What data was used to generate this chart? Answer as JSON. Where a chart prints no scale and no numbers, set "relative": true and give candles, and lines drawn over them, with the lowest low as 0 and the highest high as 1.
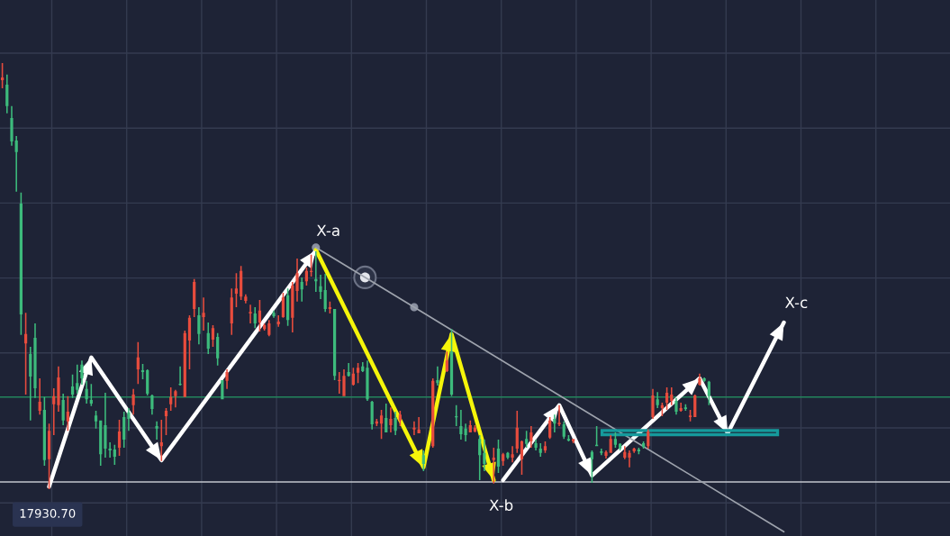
{
  "chart_data": {
    "type": "candlestick",
    "relative": true,
    "categories": [
      null,
      null,
      null,
      null,
      null,
      null,
      null,
      null,
      null,
      null,
      null,
      null,
      null,
      null,
      null,
      null,
      null,
      null,
      null,
      null,
      null,
      null,
      null,
      null,
      null,
      null,
      null,
      null,
      null,
      null,
      null,
      null,
      null,
      null,
      null,
      null,
      null,
      null,
      null,
      null,
      null,
      null,
      null,
      null,
      null,
      null,
      null,
      null,
      null,
      null,
      null,
      null,
      null,
      null,
      null,
      null,
      null,
      null,
      null,
      null,
      null,
      null,
      null,
      null,
      null,
      null,
      null,
      null,
      null,
      null,
      null,
      null,
      null,
      null,
      null,
      null,
      null,
      null,
      null,
      null,
      null,
      null,
      null,
      null,
      null,
      null,
      null,
      null,
      null,
      null,
      null,
      null,
      null,
      null,
      null,
      null,
      null,
      null,
      null,
      null,
      null,
      null,
      null,
      null,
      null,
      null,
      null,
      null,
      null,
      null,
      null,
      null,
      null,
      null,
      null,
      null,
      null,
      null,
      null,
      null,
      null,
      null,
      null,
      null,
      null,
      null,
      null,
      null,
      null,
      null,
      null,
      null,
      null,
      null,
      null,
      null,
      null,
      null,
      null,
      null,
      null,
      null,
      null,
      null,
      null,
      null,
      null,
      null,
      null,
      null,
      null,
      null,
      null,
      null,
      null,
      null,
      null,
      null,
      null,
      null,
      null,
      null,
      null,
      null,
      null,
      null,
      null,
      null,
      null,
      null,
      null,
      null,
      null,
      null,
      null,
      null,
      null,
      null,
      null,
      null,
      null,
      null,
      null,
      null,
      null,
      null,
      null,
      null,
      null,
      null,
      null,
      null,
      null,
      null,
      null,
      null,
      null,
      null,
      null,
      null,
      null,
      null,
      null
    ],
    "ohlc": [
      [
        0.96,
        1.0,
        0.941,
        0.966
      ],
      [
        0.949,
        0.973,
        0.882,
        0.899
      ],
      [
        0.871,
        0.899,
        0.806,
        0.816
      ],
      [
        0.818,
        0.829,
        0.698,
        0.791
      ],
      [
        0.67,
        0.696,
        0.362,
        0.41
      ],
      [
        0.342,
        0.414,
        0.222,
        0.364
      ],
      [
        0.317,
        0.334,
        0.161,
        0.264
      ],
      [
        0.355,
        0.389,
        0.214,
        0.237
      ],
      [
        0.184,
        0.26,
        0.175,
        0.205
      ],
      [
        0.186,
        0.216,
        0.055,
        0.068
      ],
      [
        0.07,
        0.154,
        0.0,
        0.137
      ],
      [
        0.199,
        0.237,
        0.127,
        0.218
      ],
      [
        0.197,
        0.288,
        0.182,
        0.262
      ],
      [
        0.209,
        0.224,
        0.15,
        0.161
      ],
      [
        0.159,
        0.218,
        0.137,
        0.182
      ],
      [
        0.241,
        0.269,
        0.214,
        0.222
      ],
      [
        0.249,
        0.292,
        0.224,
        0.233
      ],
      [
        0.292,
        0.302,
        0.245,
        0.26
      ],
      [
        0.235,
        0.254,
        0.201,
        0.211
      ],
      [
        0.209,
        0.247,
        0.195,
        0.201
      ],
      [
        0.173,
        0.184,
        0.142,
        0.159
      ],
      [
        0.161,
        0.161,
        0.055,
        0.082
      ],
      [
        0.15,
        0.226,
        0.074,
        0.095
      ],
      [
        0.095,
        0.11,
        0.074,
        0.091
      ],
      [
        0.093,
        0.104,
        0.057,
        0.076
      ],
      [
        0.097,
        0.163,
        0.078,
        0.135
      ],
      [
        0.169,
        0.182,
        0.097,
        0.116
      ],
      [
        0.18,
        0.19,
        0.137,
        0.165
      ],
      [
        0.197,
        0.235,
        0.175,
        0.222
      ],
      [
        0.281,
        0.345,
        0.247,
        0.309
      ],
      [
        0.279,
        0.294,
        0.258,
        0.275
      ],
      [
        0.279,
        0.281,
        0.22,
        0.224
      ],
      [
        0.22,
        0.222,
        0.175,
        0.188
      ],
      [
        0.148,
        0.159,
        0.116,
        0.142
      ],
      [
        0.101,
        0.163,
        0.066,
        0.11
      ],
      [
        0.171,
        0.19,
        0.127,
        0.184
      ],
      [
        0.199,
        0.239,
        0.184,
        0.216
      ],
      [
        0.218,
        0.233,
        0.192,
        0.23
      ],
      [
        0.247,
        0.288,
        0.243,
        0.245
      ],
      [
        0.216,
        0.372,
        0.216,
        0.366
      ],
      [
        0.349,
        0.408,
        0.281,
        0.402
      ],
      [
        0.423,
        0.493,
        0.404,
        0.486
      ],
      [
        0.408,
        0.427,
        0.34,
        0.364
      ],
      [
        0.404,
        0.45,
        0.372,
        0.414
      ],
      [
        0.366,
        0.391,
        0.317,
        0.33
      ],
      [
        0.351,
        0.385,
        0.334,
        0.378
      ],
      [
        0.357,
        0.366,
        0.29,
        0.307
      ],
      [
        0.256,
        0.256,
        0.211,
        0.211
      ],
      [
        0.254,
        0.281,
        0.235,
        0.275
      ],
      [
        0.389,
        0.471,
        0.362,
        0.45
      ],
      [
        0.459,
        0.507,
        0.427,
        0.471
      ],
      [
        0.452,
        0.524,
        0.444,
        0.512
      ],
      [
        0.442,
        0.457,
        0.436,
        0.452
      ],
      [
        0.412,
        0.433,
        0.389,
        0.416
      ],
      [
        0.412,
        0.427,
        0.378,
        0.389
      ],
      [
        0.391,
        0.444,
        0.37,
        0.419
      ],
      [
        0.376,
        0.389,
        0.372,
        0.385
      ],
      [
        0.362,
        0.397,
        0.359,
        0.389
      ],
      [
        0.414,
        0.419,
        0.402,
        0.406
      ],
      [
        0.387,
        0.408,
        0.381,
        0.393
      ],
      [
        0.404,
        0.461,
        0.402,
        0.45
      ],
      [
        0.455,
        0.471,
        0.383,
        0.397
      ],
      [
        0.402,
        0.486,
        0.368,
        0.478
      ],
      [
        0.465,
        0.541,
        0.44,
        0.507
      ],
      [
        0.486,
        0.497,
        0.44,
        0.469
      ],
      [
        0.488,
        0.52,
        0.478,
        0.512
      ],
      [
        0.51,
        0.55,
        0.499,
        0.512
      ],
      [
        0.493,
        0.558,
        0.463,
        0.488
      ],
      [
        0.476,
        0.503,
        0.446,
        0.463
      ],
      [
        0.467,
        0.505,
        0.416,
        0.423
      ],
      [
        0.423,
        0.44,
        0.412,
        0.427
      ],
      [
        0.423,
        0.423,
        0.256,
        0.266
      ],
      [
        0.254,
        0.275,
        0.224,
        0.256
      ],
      [
        0.218,
        0.281,
        0.218,
        0.266
      ],
      [
        0.275,
        0.296,
        0.264,
        0.266
      ],
      [
        0.245,
        0.285,
        0.243,
        0.271
      ],
      [
        0.273,
        0.296,
        0.249,
        0.285
      ],
      [
        0.288,
        0.298,
        0.275,
        0.277
      ],
      [
        0.285,
        0.302,
        0.207,
        0.211
      ],
      [
        0.205,
        0.207,
        0.14,
        0.152
      ],
      [
        0.154,
        0.165,
        0.148,
        0.159
      ],
      [
        0.154,
        0.186,
        0.118,
        0.173
      ],
      [
        0.167,
        0.201,
        0.133,
        0.133
      ],
      [
        0.15,
        0.192,
        0.133,
        0.165
      ],
      [
        0.167,
        0.182,
        0.127,
        0.137
      ],
      [
        0.161,
        0.184,
        0.148,
        0.175
      ],
      null,
      null,
      [
        0.14,
        0.159,
        0.127,
        0.144
      ],
      [
        0.131,
        0.169,
        0.131,
        0.14
      ],
      [
        0.08,
        0.091,
        0.042,
        0.059
      ],
      null,
      [
        0.101,
        0.26,
        0.097,
        0.254
      ],
      [
        0.256,
        0.288,
        0.243,
        0.249
      ],
      null,
      [
        0.277,
        0.323,
        0.275,
        0.302
      ],
      [
        0.323,
        0.376,
        0.218,
        0.222
      ],
      [
        0.171,
        0.197,
        0.148,
        0.169
      ],
      [
        0.148,
        0.186,
        0.116,
        0.129
      ],
      [
        0.142,
        0.154,
        0.112,
        0.127
      ],
      [
        0.133,
        0.161,
        0.133,
        0.15
      ],
      [
        0.135,
        0.15,
        0.133,
        0.144
      ],
      [
        0.118,
        0.127,
        0.021,
        0.08
      ],
      [
        0.085,
        0.116,
        0.042,
        0.059
      ],
      null,
      [
        0.068,
        0.097,
        0.013,
        0.074
      ],
      [
        0.095,
        0.116,
        0.038,
        0.053
      ],
      [
        0.066,
        0.085,
        0.055,
        0.082
      ],
      [
        0.085,
        0.087,
        0.07,
        0.074
      ],
      [
        0.074,
        0.101,
        0.063,
        0.082
      ],
      [
        0.095,
        0.184,
        0.085,
        0.144
      ],
      [
        0.07,
        0.114,
        0.034,
        0.112
      ],
      [
        0.118,
        0.137,
        0.097,
        0.106
      ],
      [
        0.112,
        0.148,
        0.097,
        0.133
      ],
      [
        0.108,
        0.116,
        0.091,
        0.097
      ],
      [
        0.095,
        0.108,
        0.076,
        0.085
      ],
      [
        0.091,
        0.112,
        0.085,
        0.101
      ],
      [
        0.121,
        0.169,
        0.118,
        0.161
      ],
      [
        0.165,
        0.175,
        0.133,
        0.154
      ],
      [
        0.152,
        0.197,
        0.148,
        0.156
      ],
      [
        0.152,
        0.159,
        0.118,
        0.123
      ],
      [
        0.118,
        0.127,
        0.112,
        0.114
      ],
      [
        0.112,
        0.118,
        0.108,
        0.118
      ],
      null,
      null,
      null,
      [
        0.087,
        0.091,
        0.015,
        0.07
      ],
      [
        0.104,
        0.148,
        0.101,
        0.101
      ],
      [
        0.089,
        0.095,
        0.08,
        0.085
      ],
      [
        0.078,
        0.091,
        0.072,
        0.087
      ],
      [
        0.085,
        0.127,
        0.085,
        0.118
      ],
      [
        0.118,
        0.133,
        0.097,
        0.104
      ],
      [
        0.106,
        0.108,
        0.091,
        0.095
      ],
      [
        0.074,
        0.101,
        0.07,
        0.087
      ],
      [
        0.074,
        0.091,
        0.051,
        0.085
      ],
      [
        0.089,
        0.097,
        0.085,
        0.095
      ],
      [
        0.093,
        0.097,
        0.082,
        0.089
      ],
      [
        0.108,
        0.112,
        0.095,
        0.099
      ],
      [
        0.101,
        0.14,
        0.095,
        0.135
      ],
      [
        0.169,
        0.235,
        0.165,
        0.22
      ],
      [
        0.211,
        0.228,
        0.19,
        0.197
      ],
      [
        0.19,
        0.203,
        0.171,
        0.197
      ],
      [
        0.203,
        0.239,
        0.186,
        0.226
      ],
      [
        0.207,
        0.239,
        0.197,
        0.222
      ],
      [
        0.207,
        0.214,
        0.175,
        0.182
      ],
      [
        0.184,
        0.203,
        0.182,
        0.19
      ],
      [
        0.192,
        0.199,
        0.184,
        0.188
      ],
      [
        0.169,
        0.186,
        0.159,
        0.173
      ],
      [
        0.169,
        0.222,
        0.169,
        0.22
      ],
      [
        0.245,
        0.271,
        0.243,
        0.26
      ],
      [
        0.26,
        0.262,
        0.252,
        0.254
      ],
      [
        0.252,
        0.254,
        0.197,
        0.218
      ],
      null,
      null,
      null,
      null,
      null,
      null,
      null,
      null,
      null,
      null,
      null,
      null,
      null,
      null,
      null,
      null,
      null,
      null,
      null,
      null,
      null,
      null,
      null,
      null,
      null,
      null,
      null,
      null,
      null,
      null,
      null,
      null,
      null,
      null,
      null,
      null,
      null,
      null,
      null,
      null,
      null,
      null,
      null,
      null,
      null,
      null,
      null,
      null,
      null,
      null,
      null
    ],
    "colors": [
      "#e84c3d",
      "#3dbb7c",
      "#3dbb7c",
      "#3dbb7c",
      "#3dbb7c",
      "#e84c3d",
      "#3dbb7c",
      "#3dbb7c",
      "#e84c3d",
      "#3dbb7c",
      "#e84c3d",
      "#e84c3d",
      "#e84c3d",
      "#3dbb7c",
      "#e84c3d",
      "#3dbb7c",
      "#3dbb7c",
      "#3dbb7c",
      "#3dbb7c",
      "#3dbb7c",
      "#3dbb7c",
      "#3dbb7c",
      "#3dbb7c",
      "#3dbb7c",
      "#3dbb7c",
      "#e84c3d",
      "#3dbb7c",
      "#3dbb7c",
      "#e84c3d",
      "#e84c3d",
      "#3dbb7c",
      "#3dbb7c",
      "#3dbb7c",
      "#3dbb7c",
      "#e84c3d",
      "#e84c3d",
      "#e84c3d",
      "#e84c3d",
      "#3dbb7c",
      "#e84c3d",
      "#e84c3d",
      "#e84c3d",
      "#3dbb7c",
      "#e84c3d",
      "#3dbb7c",
      "#e84c3d",
      "#3dbb7c",
      "#3dbb7c",
      "#e84c3d",
      "#e84c3d",
      "#e84c3d",
      "#e84c3d",
      "#e84c3d",
      "#e84c3d",
      "#3dbb7c",
      "#e84c3d",
      "#e84c3d",
      "#e84c3d",
      "#3dbb7c",
      "#e84c3d",
      "#e84c3d",
      "#3dbb7c",
      "#e84c3d",
      "#e84c3d",
      "#3dbb7c",
      "#e84c3d",
      "#e84c3d",
      "#3dbb7c",
      "#3dbb7c",
      "#3dbb7c",
      "#e84c3d",
      "#3dbb7c",
      "#e84c3d",
      "#e84c3d",
      "#3dbb7c",
      "#e84c3d",
      "#e84c3d",
      "#3dbb7c",
      "#3dbb7c",
      "#3dbb7c",
      "#e84c3d",
      "#e84c3d",
      "#3dbb7c",
      "#e84c3d",
      "#3dbb7c",
      "#e84c3d",
      null,
      null,
      "#e84c3d",
      "#e84c3d",
      "#3dbb7c",
      null,
      "#e84c3d",
      "#3dbb7c",
      null,
      "#e84c3d",
      "#3dbb7c",
      "#3dbb7c",
      "#3dbb7c",
      "#3dbb7c",
      "#e84c3d",
      "#e84c3d",
      "#3dbb7c",
      "#3dbb7c",
      null,
      "#e84c3d",
      "#3dbb7c",
      "#e84c3d",
      "#3dbb7c",
      "#e84c3d",
      "#e84c3d",
      "#e84c3d",
      "#3dbb7c",
      "#e84c3d",
      "#3dbb7c",
      "#3dbb7c",
      "#e84c3d",
      "#e84c3d",
      "#3dbb7c",
      "#e84c3d",
      "#3dbb7c",
      "#3dbb7c",
      "#e84c3d",
      null,
      null,
      null,
      "#3dbb7c",
      "#3dbb7c",
      "#3dbb7c",
      "#e84c3d",
      "#e84c3d",
      "#3dbb7c",
      "#3dbb7c",
      "#e84c3d",
      "#e84c3d",
      "#e84c3d",
      "#3dbb7c",
      "#3dbb7c",
      "#e84c3d",
      "#e84c3d",
      "#3dbb7c",
      "#e84c3d",
      "#e84c3d",
      "#e84c3d",
      "#3dbb7c",
      "#e84c3d",
      "#3dbb7c",
      "#e84c3d",
      "#e84c3d",
      "#e84c3d",
      "#3dbb7c",
      "#3dbb7c",
      null,
      null,
      null,
      null,
      null,
      null,
      null,
      null,
      null,
      null,
      null,
      null,
      null,
      null,
      null,
      null,
      null,
      null,
      null,
      null,
      null,
      null,
      null,
      null,
      null,
      null,
      null,
      null,
      null,
      null,
      null,
      null,
      null,
      null,
      null,
      null,
      null,
      null,
      null,
      null,
      null,
      null,
      null,
      null,
      null,
      null,
      null,
      null,
      null,
      null,
      null
    ],
    "series": [
      {
        "type": "line",
        "color": "#ffffff",
        "values": [
          null,
          null,
          null,
          null,
          null,
          null,
          null,
          null,
          null,
          null,
          0.006,
          null,
          null,
          null,
          null,
          null,
          null,
          null,
          null,
          0.309,
          null,
          null,
          null,
          null,
          null,
          null,
          null,
          null,
          null,
          null,
          null,
          null,
          null,
          null,
          0.068,
          null,
          null,
          null,
          null,
          null,
          null,
          null,
          null,
          null,
          null,
          null,
          null,
          null,
          null,
          null,
          null,
          null,
          null,
          null,
          null,
          null,
          null,
          null,
          null,
          null,
          null,
          null,
          null,
          null,
          null,
          null,
          null,
          0.56,
          null,
          null,
          null,
          null,
          null,
          null,
          null,
          null,
          null,
          null,
          null,
          null,
          null,
          null,
          null,
          null,
          null,
          null,
          null,
          null,
          null,
          null,
          null,
          null,
          null,
          null,
          null,
          null,
          null,
          null,
          null,
          null,
          null,
          null,
          null,
          null,
          null,
          null,
          null,
          null,
          null,
          null,
          null,
          null,
          null,
          null,
          null,
          null,
          null,
          null,
          null,
          null,
          null,
          null,
          null,
          null,
          null,
          null,
          null,
          null,
          null,
          null,
          null,
          null,
          null,
          null,
          null,
          null,
          null,
          null,
          null,
          null,
          null,
          null,
          null,
          null,
          null,
          null,
          null,
          null,
          null,
          null,
          null,
          null,
          null,
          null,
          null,
          null,
          null,
          null,
          null,
          null,
          null,
          null,
          null,
          null,
          null,
          null,
          null,
          null,
          null,
          null,
          null,
          null,
          null,
          null,
          null,
          null,
          null,
          null,
          null,
          null,
          null,
          null,
          null,
          null,
          null,
          null,
          null,
          null,
          null,
          null,
          null,
          null,
          null,
          null,
          null,
          null,
          null,
          null,
          null,
          null,
          null,
          null,
          null
        ]
      },
      {
        "type": "line",
        "color": "#f5f50a",
        "values": [
          null,
          null,
          null,
          null,
          null,
          null,
          null,
          null,
          null,
          null,
          null,
          null,
          null,
          null,
          null,
          null,
          null,
          null,
          null,
          null,
          null,
          null,
          null,
          null,
          null,
          null,
          null,
          null,
          null,
          null,
          null,
          null,
          null,
          null,
          null,
          null,
          null,
          null,
          null,
          null,
          null,
          null,
          null,
          null,
          null,
          null,
          null,
          null,
          null,
          null,
          null,
          null,
          null,
          null,
          null,
          null,
          null,
          null,
          null,
          null,
          null,
          null,
          null,
          null,
          null,
          null,
          null,
          0.562,
          null,
          null,
          null,
          null,
          null,
          null,
          null,
          null,
          null,
          null,
          null,
          null,
          null,
          null,
          null,
          null,
          null,
          null,
          null,
          null,
          null,
          null,
          0.051,
          null,
          null,
          null,
          null,
          null,
          0.364,
          null,
          null,
          null,
          null,
          null,
          null,
          null,
          null,
          0.021,
          null,
          null,
          null,
          null,
          null,
          null,
          null,
          null,
          null,
          null,
          null,
          null,
          null,
          null,
          null,
          null,
          null,
          null,
          null,
          null,
          null,
          null,
          null,
          null,
          null,
          null,
          null,
          null,
          null,
          null,
          null,
          null,
          null,
          null,
          null,
          null,
          null,
          null,
          null,
          null,
          null,
          null,
          null,
          null,
          null,
          null,
          null,
          null,
          null,
          null,
          null,
          null,
          null,
          null,
          null,
          null,
          null,
          null,
          null,
          null,
          null,
          null,
          null,
          null,
          null,
          null,
          null,
          null,
          null,
          null,
          null,
          null,
          null,
          null,
          null,
          null,
          null,
          null,
          null,
          null,
          null,
          null,
          null,
          null,
          null,
          null,
          null,
          null,
          null,
          null,
          null,
          null,
          null,
          null,
          null,
          null,
          null
        ]
      },
      {
        "type": "line",
        "color": "#ffffff",
        "values": [
          null,
          null,
          null,
          null,
          null,
          null,
          null,
          null,
          null,
          null,
          null,
          null,
          null,
          null,
          null,
          null,
          null,
          null,
          null,
          null,
          null,
          null,
          null,
          null,
          null,
          null,
          null,
          null,
          null,
          null,
          null,
          null,
          null,
          null,
          null,
          null,
          null,
          null,
          null,
          null,
          null,
          null,
          null,
          null,
          null,
          null,
          null,
          null,
          null,
          null,
          null,
          null,
          null,
          null,
          null,
          null,
          null,
          null,
          null,
          null,
          null,
          null,
          null,
          null,
          null,
          null,
          null,
          null,
          null,
          null,
          null,
          null,
          null,
          null,
          null,
          null,
          null,
          null,
          null,
          null,
          null,
          null,
          null,
          null,
          null,
          null,
          null,
          null,
          null,
          null,
          null,
          null,
          null,
          null,
          null,
          null,
          null,
          null,
          null,
          null,
          null,
          null,
          null,
          null,
          null,
          null,
          null,
          0.021,
          null,
          null,
          null,
          null,
          null,
          null,
          null,
          null,
          null,
          null,
          null,
          0.197,
          null,
          null,
          null,
          null,
          null,
          null,
          0.032,
          null,
          null,
          null,
          null,
          null,
          null,
          null,
          null,
          null,
          null,
          null,
          null,
          null,
          null,
          null,
          null,
          null,
          null,
          null,
          null,
          null,
          null,
          0.26,
          null,
          null,
          null,
          null,
          null,
          0.131,
          null,
          null,
          null,
          null,
          null,
          null,
          null,
          null,
          null,
          null,
          null,
          0.391,
          null,
          null,
          null,
          null,
          null,
          null,
          null,
          null,
          null,
          null,
          null,
          null,
          null,
          null,
          null,
          null,
          null,
          null,
          null,
          null,
          null,
          null,
          null,
          null,
          null,
          null,
          null,
          null,
          null,
          null,
          null,
          null,
          null,
          null,
          null
        ]
      },
      {
        "type": "line",
        "color": "#9ea3ad",
        "values": [
          null,
          null,
          null,
          null,
          null,
          null,
          null,
          null,
          null,
          null,
          null,
          null,
          null,
          null,
          null,
          null,
          null,
          null,
          null,
          null,
          null,
          null,
          null,
          null,
          null,
          null,
          null,
          null,
          null,
          null,
          null,
          null,
          null,
          null,
          null,
          null,
          null,
          null,
          null,
          null,
          null,
          null,
          null,
          null,
          null,
          null,
          null,
          null,
          null,
          null,
          null,
          null,
          null,
          null,
          null,
          null,
          null,
          null,
          null,
          null,
          null,
          null,
          null,
          null,
          null,
          null,
          null,
          0.567,
          null,
          null,
          null,
          null,
          null,
          null,
          null,
          null,
          null,
          null,
          null,
          null,
          null,
          null,
          null,
          null,
          null,
          null,
          null,
          null,
          0.427,
          null,
          null,
          null,
          null,
          null,
          null,
          null,
          null,
          null,
          null,
          null,
          null,
          null,
          null,
          null,
          null,
          null,
          null,
          null,
          null,
          null,
          null,
          null,
          null,
          null,
          null,
          null,
          null,
          null,
          null,
          null,
          null,
          null,
          null,
          null,
          null,
          null,
          null,
          null,
          null,
          null,
          null,
          null,
          null,
          null,
          null,
          null,
          null,
          null,
          null,
          null,
          null,
          null,
          null,
          null,
          null,
          null,
          null,
          null,
          null,
          null,
          null,
          null,
          null,
          null,
          null,
          null,
          null,
          null,
          null,
          null,
          null,
          null,
          null,
          null,
          null,
          null,
          null,
          -0.1,
          null,
          null,
          null,
          null,
          null,
          null,
          null,
          null,
          null,
          null,
          null,
          null,
          null,
          null,
          null,
          null,
          null,
          null,
          null,
          null,
          null,
          null,
          null,
          null,
          null,
          null,
          null,
          null,
          null,
          null,
          null,
          null,
          null,
          null,
          null
        ]
      }
    ],
    "ref_lines": [
      {
        "axis": "y",
        "value": 0.017,
        "color": "#c3c6ce"
      },
      {
        "axis": "y",
        "value": 0.216,
        "color": "#23855c"
      }
    ],
    "bands": [
      {
        "axis": "y",
        "from": 0.125,
        "to": 0.14,
        "color": "#159a9c"
      }
    ],
    "annotations": [
      "X-a",
      "X-b",
      "X-c",
      "17930.70"
    ],
    "grid": true,
    "tick_labels": false
  }
}
